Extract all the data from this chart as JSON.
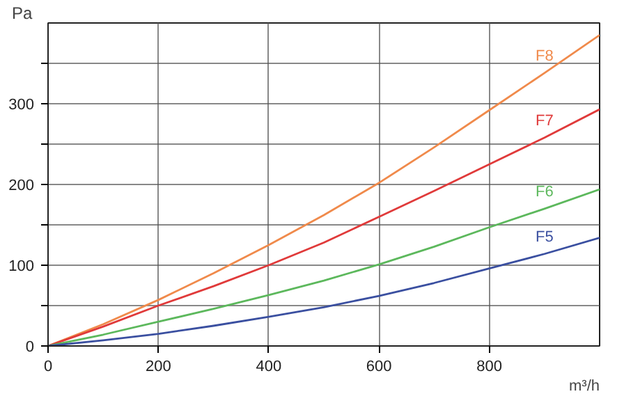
{
  "chart_data": {
    "type": "line",
    "xlabel": "m³/h",
    "ylabel": "Pa",
    "xlim": [
      0,
      1000
    ],
    "xticks": [
      0,
      200,
      400,
      600,
      800
    ],
    "ylim": [
      0,
      400
    ],
    "yticks": [
      0,
      {
        "value": 50,
        "label": null
      },
      100,
      {
        "value": 150,
        "label": null
      },
      200,
      {
        "value": 250,
        "label": null
      },
      300,
      {
        "value": 350,
        "label": null
      }
    ],
    "grid": true,
    "marker": "none",
    "line_style": "solid",
    "x": [
      0,
      100,
      200,
      300,
      400,
      500,
      600,
      700,
      800,
      900,
      1000
    ],
    "series": [
      {
        "name": "F8",
        "color": "#f08a4b",
        "values": [
          0,
          27,
          57,
          90,
          125,
          162,
          202,
          246,
          292,
          338,
          385
        ]
      },
      {
        "name": "F7",
        "color": "#e03a3a",
        "values": [
          0,
          24,
          50,
          74,
          100,
          128,
          160,
          192,
          225,
          258,
          293
        ]
      },
      {
        "name": "F6",
        "color": "#5cb85c",
        "values": [
          0,
          14,
          30,
          46,
          63,
          81,
          101,
          123,
          147,
          170,
          194
        ]
      },
      {
        "name": "F5",
        "color": "#3a4fa0",
        "values": [
          0,
          7,
          15,
          25,
          36,
          48,
          62,
          78,
          96,
          114,
          134
        ]
      }
    ]
  }
}
